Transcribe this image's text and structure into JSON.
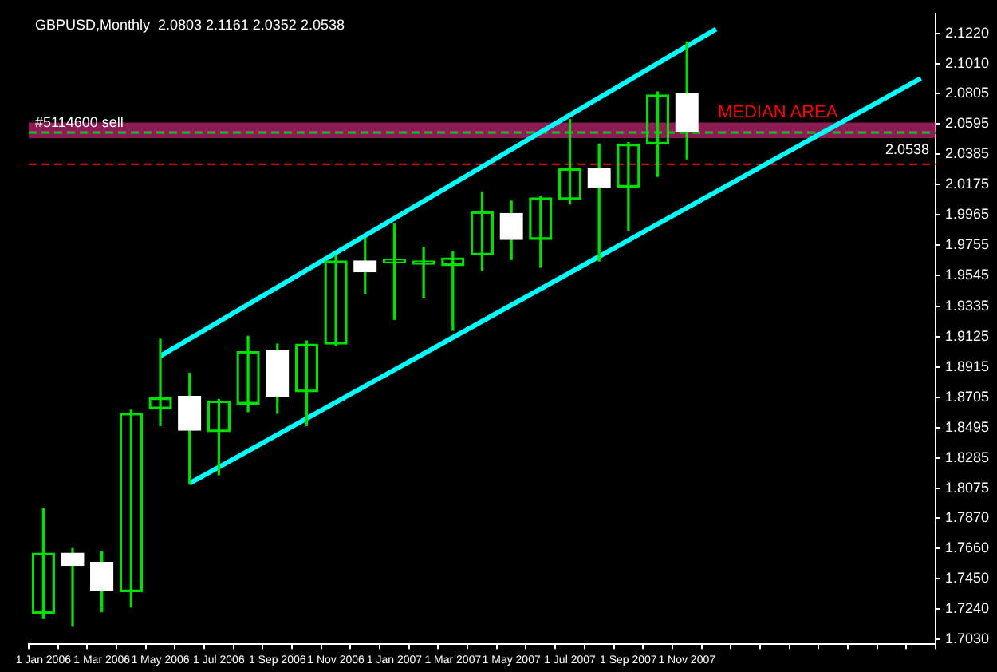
{
  "chart_data": {
    "type": "candlestick",
    "title": "GBPUSD,Monthly  2.0803 2.1161 2.0352 2.0538",
    "categories": [
      "1 Jan 2006",
      null,
      "1 Mar 2006",
      null,
      "1 May 2006",
      null,
      "1 Jul 2006",
      null,
      "1 Sep 2006",
      null,
      "1 Nov 2006",
      null,
      "1 Jan 2007",
      null,
      "1 Mar 2007",
      null,
      "1 May 2007",
      null,
      "1 Jul 2007",
      null,
      "1 Sep 2007",
      null,
      "1 Nov 2007",
      null,
      null,
      null,
      null,
      null,
      null,
      null,
      null
    ],
    "ohlc": [
      [
        1.7212,
        1.7935,
        1.718,
        1.7627
      ],
      [
        1.7627,
        1.7659,
        1.7127,
        1.7542
      ],
      [
        1.7563,
        1.7638,
        1.7223,
        1.7372
      ],
      [
        1.7361,
        1.8616,
        1.7255,
        1.8594
      ],
      [
        1.8626,
        1.9105,
        1.8509,
        1.8701
      ],
      [
        1.8711,
        1.8871,
        1.8105,
        1.8477
      ],
      [
        1.8467,
        1.869,
        1.8169,
        1.8679
      ],
      [
        1.8658,
        1.9126,
        1.8605,
        1.902
      ],
      [
        1.903,
        1.9073,
        1.8594,
        1.8711
      ],
      [
        1.8743,
        1.9094,
        1.8509,
        1.9073
      ],
      [
        1.9073,
        1.9689,
        1.9063,
        1.9647
      ],
      [
        1.9647,
        1.9806,
        1.9424,
        1.9572
      ],
      [
        1.9636,
        1.9902,
        1.9243,
        1.9636
      ],
      [
        1.9625,
        1.9742,
        1.9392,
        1.9625
      ],
      [
        1.9615,
        1.9711,
        1.9168,
        1.9668
      ],
      [
        1.9689,
        2.0125,
        1.9583,
        1.9987
      ],
      [
        1.9976,
        2.0061,
        1.9657,
        1.9796
      ],
      [
        1.9796,
        2.0093,
        1.9604,
        2.0083
      ],
      [
        2.0072,
        2.0625,
        2.004,
        2.0285
      ],
      [
        2.0285,
        2.0455,
        1.9647,
        2.0157
      ],
      [
        2.0157,
        2.0465,
        1.9859,
        2.0455
      ],
      [
        2.0455,
        2.0816,
        2.0231,
        2.0795
      ],
      [
        2.0803,
        2.1161,
        2.0352,
        2.0538
      ],
      null,
      null,
      null,
      null,
      null,
      null,
      null,
      null
    ],
    "color": "#00dd00",
    "colors": [
      "#00dd00",
      "#ffffff",
      "#ffffff",
      "#00dd00",
      "#00dd00",
      "#ffffff",
      "#00dd00",
      "#00dd00",
      "#ffffff",
      "#00dd00",
      "#00dd00",
      "#ffffff",
      "#00dd00",
      "#00dd00",
      "#00dd00",
      "#00dd00",
      "#ffffff",
      "#00dd00",
      "#00dd00",
      "#ffffff",
      "#00dd00",
      "#00dd00",
      "#ffffff",
      null,
      null,
      null,
      null,
      null,
      null,
      null,
      null
    ],
    "series": [
      {
        "type": "line",
        "color": "#00ffff",
        "values": [
          null,
          null,
          null,
          null,
          1.899,
          null,
          null,
          null,
          null,
          null,
          null,
          null,
          null,
          null,
          null,
          null,
          null,
          null,
          null,
          null,
          null,
          null,
          null,
          2.125,
          null,
          null,
          null,
          null,
          null,
          null,
          null
        ]
      },
      {
        "type": "line",
        "color": "#00ffff",
        "values": [
          null,
          null,
          null,
          null,
          null,
          1.811,
          null,
          null,
          null,
          null,
          null,
          null,
          null,
          null,
          null,
          null,
          null,
          null,
          null,
          null,
          null,
          null,
          null,
          null,
          null,
          null,
          null,
          null,
          null,
          null,
          2.091
        ]
      }
    ],
    "ylim": [
      1.6998,
      2.1358
    ],
    "yticks": [
      {
        "value": 2.122,
        "label": "2.1220"
      },
      {
        "value": 2.101,
        "label": "2.1010"
      },
      2.0805,
      2.0595,
      2.0385,
      2.0175,
      1.9965,
      1.9755,
      1.9545,
      1.9335,
      1.9125,
      1.8915,
      1.8705,
      1.8495,
      1.8285,
      1.8075,
      {
        "value": 1.787,
        "label": "1.7870"
      },
      {
        "value": 1.766,
        "label": "1.7660"
      },
      {
        "value": 1.745,
        "label": "1.7450"
      },
      {
        "value": 1.724,
        "label": "1.7240"
      },
      {
        "value": 1.703,
        "label": "1.7030"
      }
    ],
    "ref_lines": [
      {
        "axis": "y",
        "value": 2.053,
        "label": "#5114600 sell",
        "color": "#00aa00",
        "line_style": "dashed"
      },
      {
        "axis": "y",
        "value": 2.0538,
        "label": "2.0538",
        "color": "#808080",
        "line_style": "dashed"
      },
      {
        "axis": "y",
        "value": 2.0316,
        "color": "#ff0000",
        "line_style": "dashed"
      }
    ],
    "bands": [
      {
        "axis": "y",
        "from": 2.0497,
        "to": 2.0604,
        "label": "MEDIAN AREA",
        "color": "#ff3399"
      }
    ]
  }
}
